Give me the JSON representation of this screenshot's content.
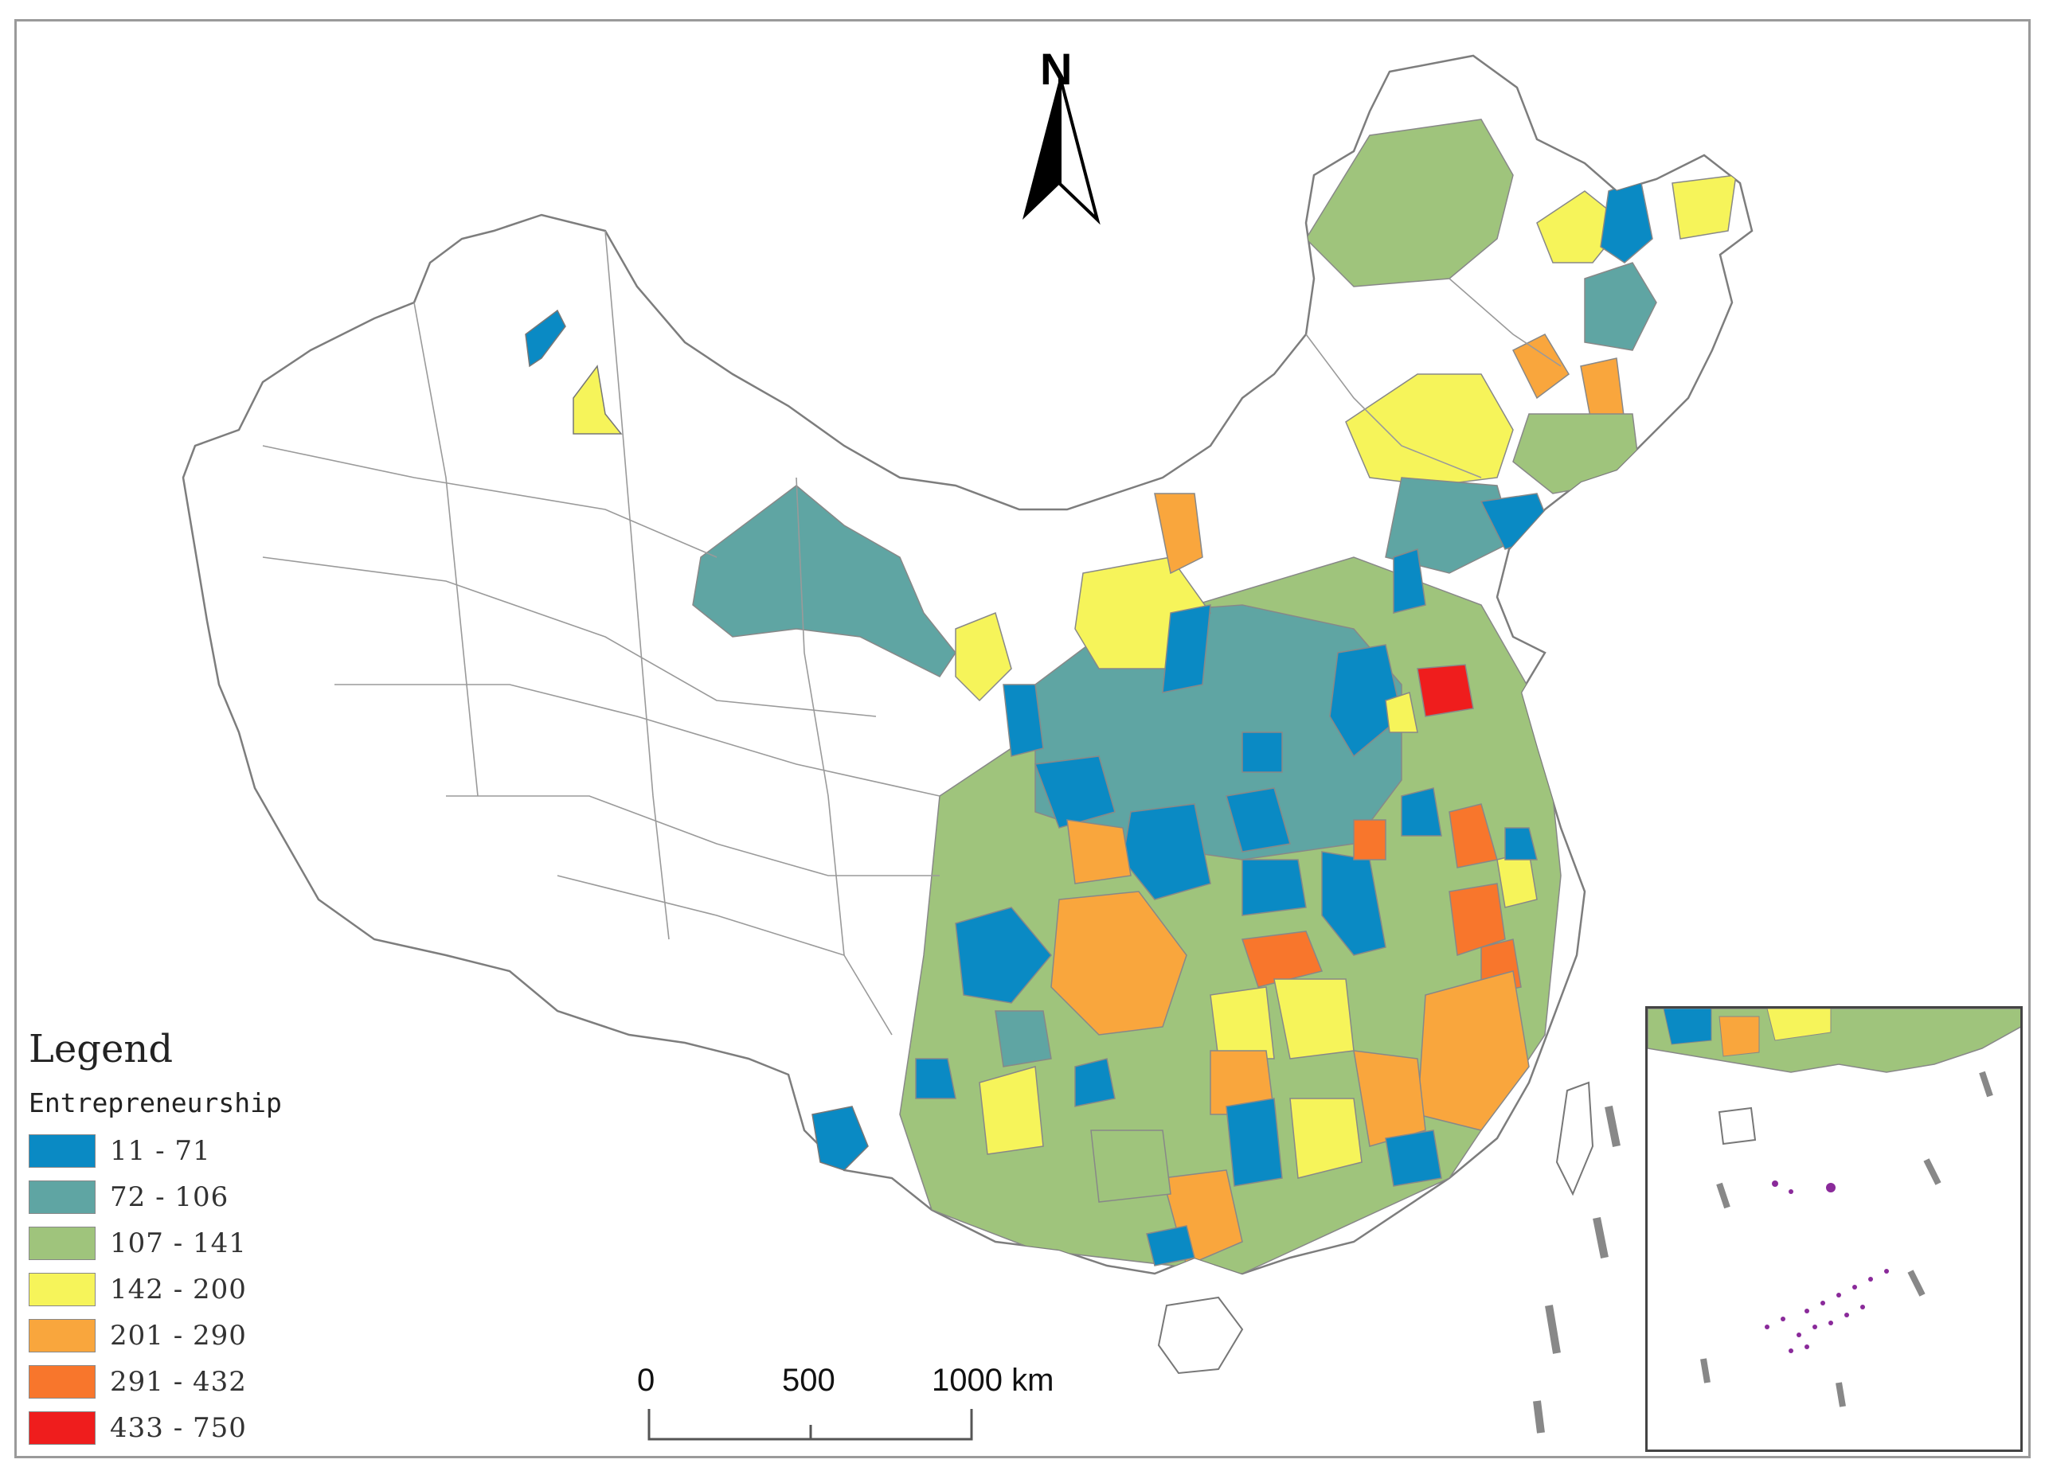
{
  "map": {
    "north_label": "N",
    "legend_title": "Legend",
    "legend_subtitle": "Entrepreneurship",
    "legend_items": [
      {
        "range": "11  -  71",
        "color": "#0a8ac4"
      },
      {
        "range": "72  -  106",
        "color": "#5fa5a3"
      },
      {
        "range": "107  -  141",
        "color": "#9fc47c"
      },
      {
        "range": "142  -  200",
        "color": "#f6f45a"
      },
      {
        "range": "201  -  290",
        "color": "#f9a63d"
      },
      {
        "range": "291  -  432",
        "color": "#f8762c"
      },
      {
        "range": "433  -  750",
        "color": "#ef1d1d"
      }
    ],
    "scale": {
      "zero": "0",
      "mid": "500",
      "end": "1000 km"
    }
  }
}
